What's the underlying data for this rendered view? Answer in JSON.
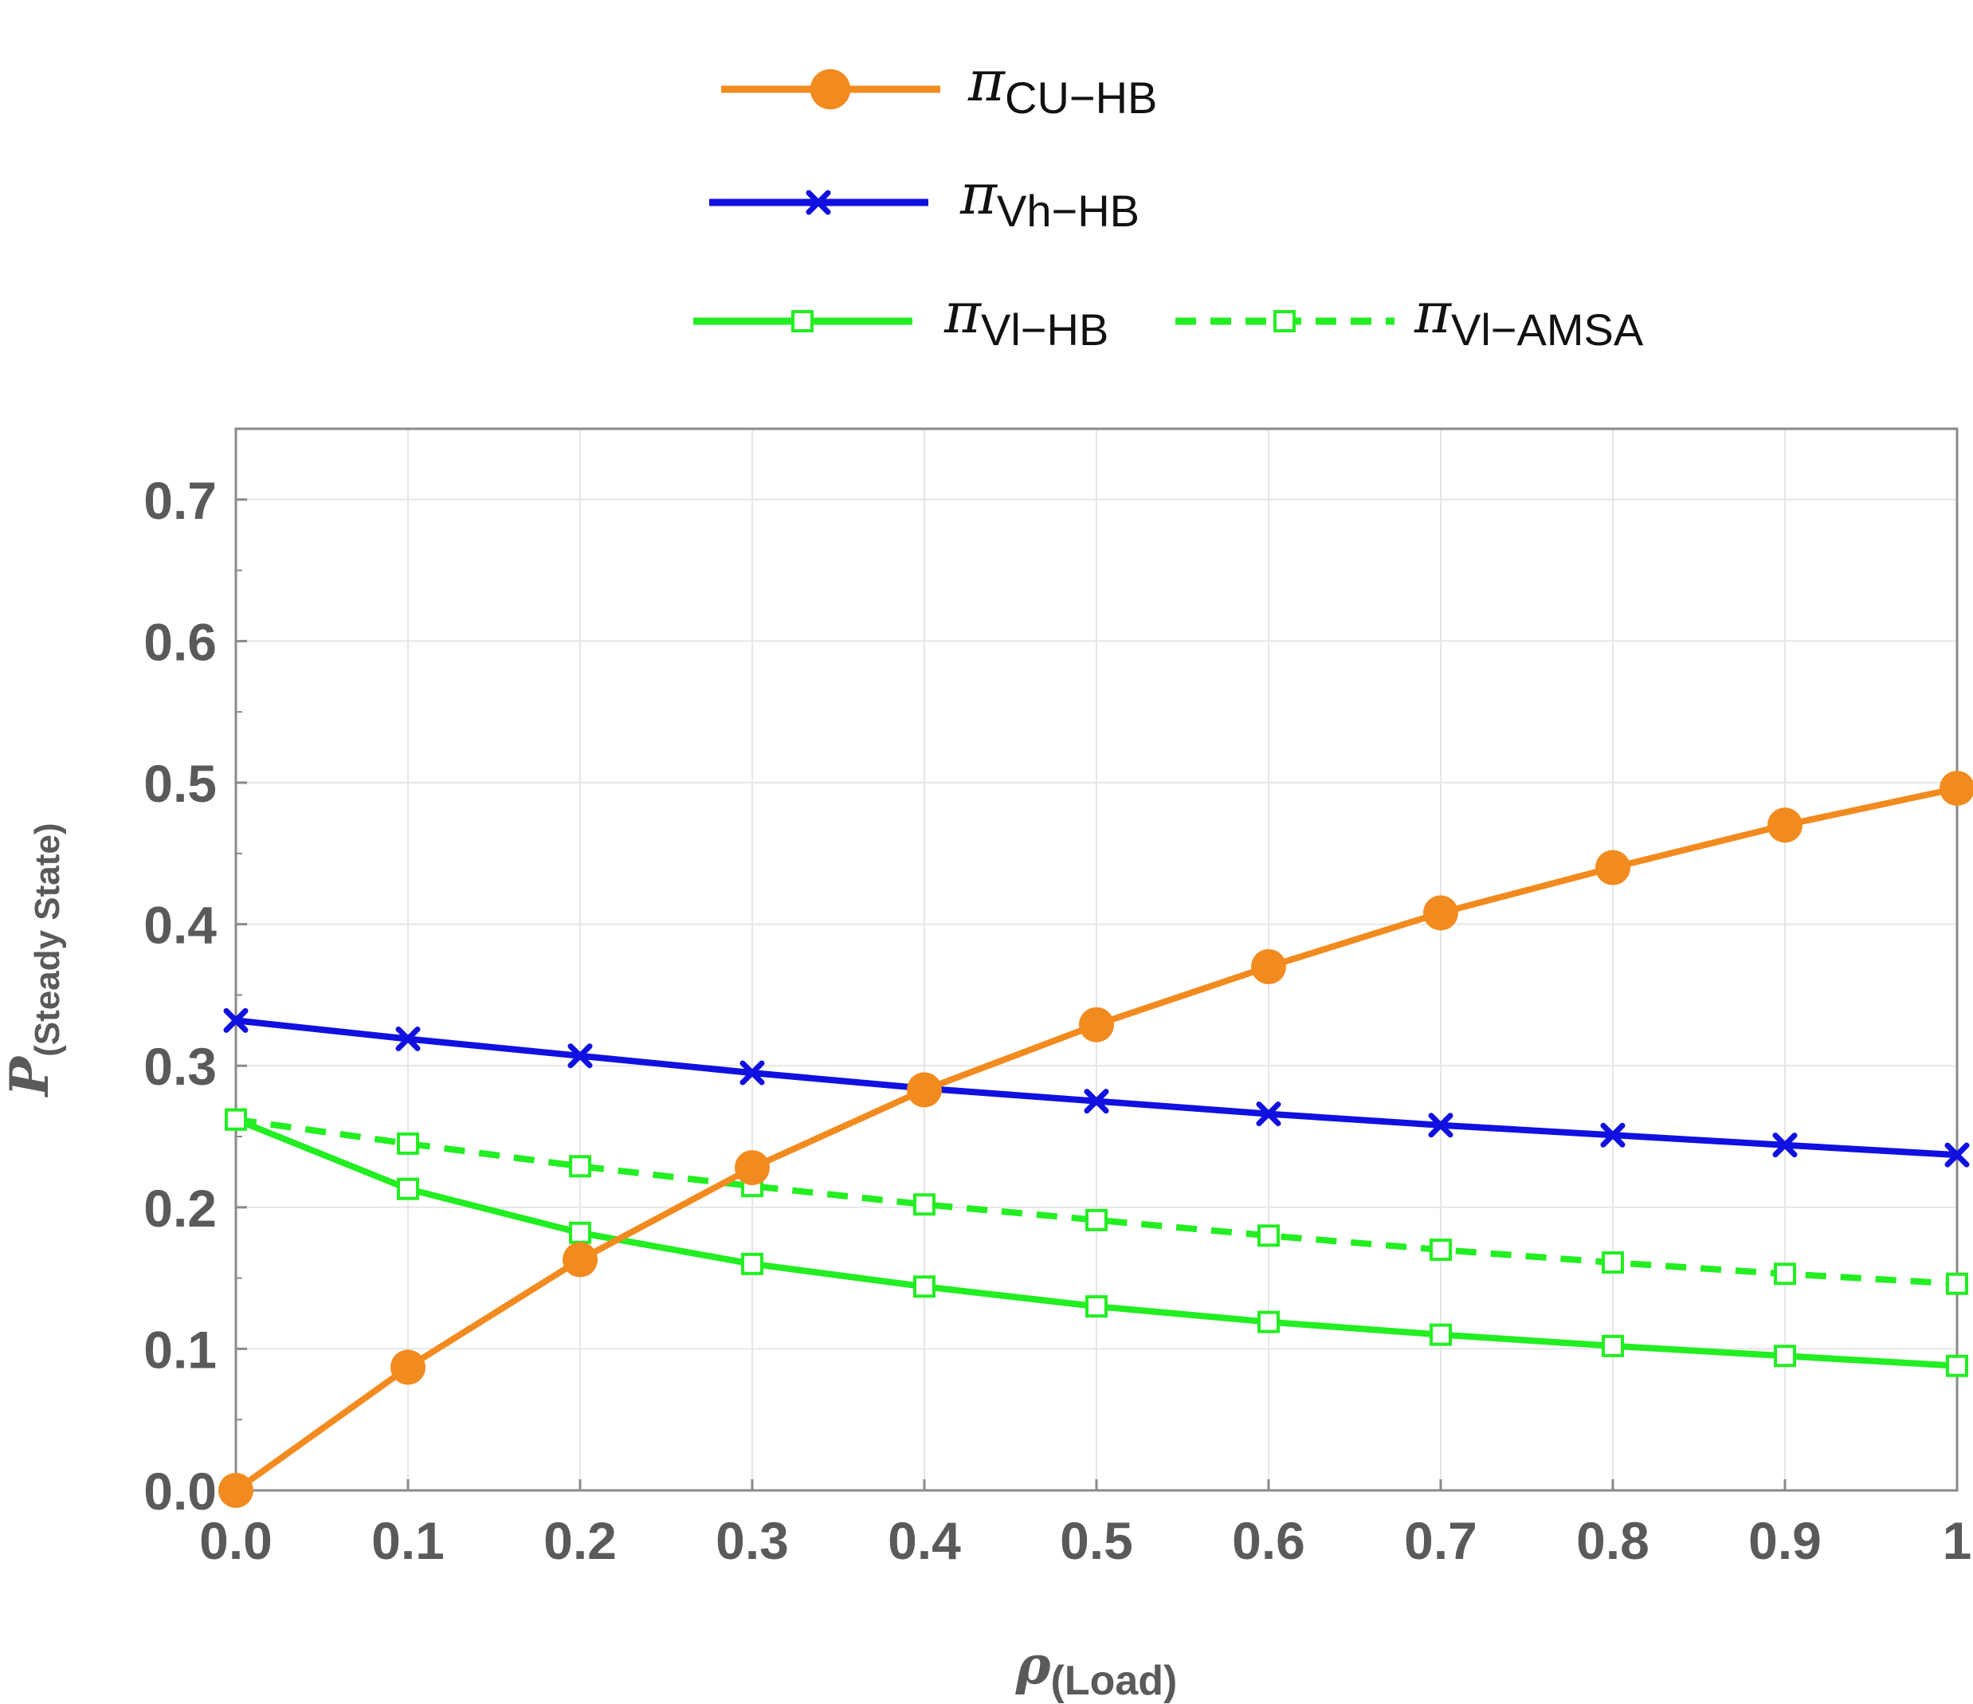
{
  "chart_data": {
    "type": "line",
    "x": [
      0.0,
      0.1,
      0.2,
      0.3,
      0.4,
      0.5,
      0.6,
      0.7,
      0.8,
      0.9,
      1.0
    ],
    "series": [
      {
        "id": "cu-hb",
        "name": "π",
        "sub": "CU−HB",
        "color": "#f28b1f",
        "marker": "circle",
        "dashed": false,
        "values": [
          0.0,
          0.087,
          0.163,
          0.228,
          0.283,
          0.329,
          0.37,
          0.408,
          0.44,
          0.47,
          0.496
        ]
      },
      {
        "id": "vh-hb",
        "name": "π",
        "sub": "Vh−HB",
        "color": "#1010e0",
        "marker": "cross",
        "dashed": false,
        "values": [
          0.332,
          0.319,
          0.307,
          0.295,
          0.284,
          0.275,
          0.266,
          0.258,
          0.251,
          0.244,
          0.237
        ]
      },
      {
        "id": "vl-hb",
        "name": "π",
        "sub": "Vl−HB",
        "color": "#22ee22",
        "marker": "square",
        "dashed": false,
        "values": [
          0.262,
          0.213,
          0.182,
          0.16,
          0.144,
          0.13,
          0.119,
          0.11,
          0.102,
          0.095,
          0.088
        ]
      },
      {
        "id": "vl-amsa",
        "name": "π",
        "sub": "Vl−AMSA",
        "color": "#22ee22",
        "marker": "square",
        "dashed": true,
        "values": [
          0.262,
          0.245,
          0.229,
          0.215,
          0.202,
          0.191,
          0.18,
          0.17,
          0.161,
          0.153,
          0.146
        ]
      }
    ],
    "xlim": [
      0,
      1
    ],
    "ylim": [
      0,
      0.75
    ],
    "xticks": [
      "0.0",
      "0.1",
      "0.2",
      "0.3",
      "0.4",
      "0.5",
      "0.6",
      "0.7",
      "0.8",
      "0.9",
      "1"
    ],
    "yticks": [
      "0.0",
      "0.1",
      "0.2",
      "0.3",
      "0.4",
      "0.5",
      "0.6",
      "0.7"
    ],
    "xlabel": {
      "main": "ρ",
      "sub": "(Load)"
    },
    "ylabel": {
      "main": "P",
      "sub": "(Steady State)"
    },
    "grid": true,
    "legend_position": "top"
  }
}
